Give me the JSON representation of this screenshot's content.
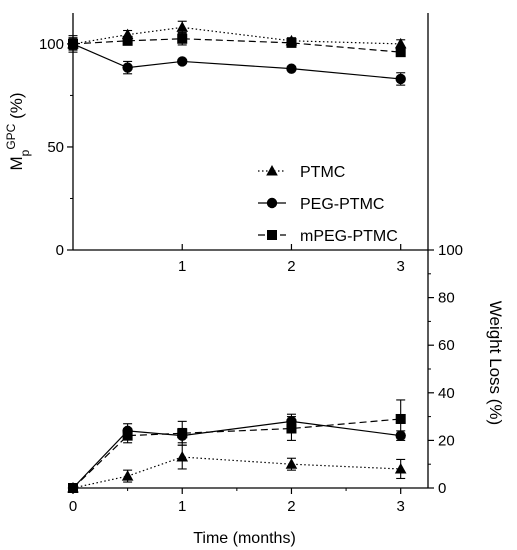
{
  "chart_data": [
    {
      "type": "line",
      "panel": "top",
      "ylabel": {
        "main": "M",
        "sub": "p",
        "sup": "GPC",
        "unit": " (%)"
      },
      "xlim": [
        0,
        3.25
      ],
      "ylim": [
        0,
        115
      ],
      "yticks": [
        {
          "value": 0,
          "label": "0"
        },
        {
          "value": 50,
          "label": "50"
        },
        {
          "value": 100,
          "label": "100"
        }
      ],
      "legend": {
        "placement": "right",
        "entries": [
          "PTMC",
          "PEG-PTMC",
          "mPEG-PTMC"
        ]
      },
      "series": [
        {
          "name": "PTMC",
          "marker": "triangle",
          "line": "dotted",
          "x": [
            0,
            0.5,
            1,
            2,
            3
          ],
          "y": [
            100,
            104.5,
            108,
            101.5,
            100
          ],
          "err": [
            2.5,
            2,
            3,
            1.5,
            2
          ]
        },
        {
          "name": "PEG-PTMC",
          "marker": "circle",
          "line": "solid",
          "x": [
            0,
            0.5,
            1,
            2,
            3
          ],
          "y": [
            100,
            88.5,
            91.5,
            88,
            83
          ],
          "err": [
            3,
            3,
            1,
            1,
            3
          ]
        },
        {
          "name": "mPEG-PTMC",
          "marker": "square",
          "line": "dashed",
          "x": [
            0,
            0.5,
            1,
            2,
            3
          ],
          "y": [
            100,
            101.5,
            102.5,
            100.5,
            96
          ],
          "err": [
            4,
            2,
            3,
            1.5,
            2
          ]
        }
      ]
    },
    {
      "type": "line",
      "panel": "bottom",
      "xlabel": "Time (months)",
      "ylabel": "Weight Loss (%)",
      "xlim": [
        0,
        3.25
      ],
      "ylim": [
        0,
        100
      ],
      "xticks": [
        {
          "value": 0,
          "label": "0"
        },
        {
          "value": 1,
          "label": "1"
        },
        {
          "value": 2,
          "label": "2"
        },
        {
          "value": 3,
          "label": "3"
        }
      ],
      "yticks": [
        {
          "value": 0,
          "label": "0"
        },
        {
          "value": 20,
          "label": "20"
        },
        {
          "value": 40,
          "label": "40"
        },
        {
          "value": 60,
          "label": "60"
        },
        {
          "value": 80,
          "label": "80"
        },
        {
          "value": 100,
          "label": "100"
        }
      ],
      "series": [
        {
          "name": "PTMC",
          "marker": "triangle",
          "line": "dotted",
          "x": [
            0,
            0.5,
            1,
            2,
            3
          ],
          "y": [
            0,
            5,
            13,
            10,
            8
          ],
          "err": [
            0,
            2.5,
            5,
            2.5,
            4
          ]
        },
        {
          "name": "PEG-PTMC",
          "marker": "circle",
          "line": "solid",
          "x": [
            0,
            0.5,
            1,
            2,
            3
          ],
          "y": [
            0,
            24,
            22,
            28,
            22
          ],
          "err": [
            0,
            3,
            3,
            3,
            2
          ]
        },
        {
          "name": "mPEG-PTMC",
          "marker": "square",
          "line": "dashed",
          "x": [
            0,
            0.5,
            1,
            2,
            3
          ],
          "y": [
            0,
            22,
            23,
            25,
            29
          ],
          "err": [
            0,
            3,
            5,
            5,
            8
          ]
        }
      ]
    }
  ]
}
